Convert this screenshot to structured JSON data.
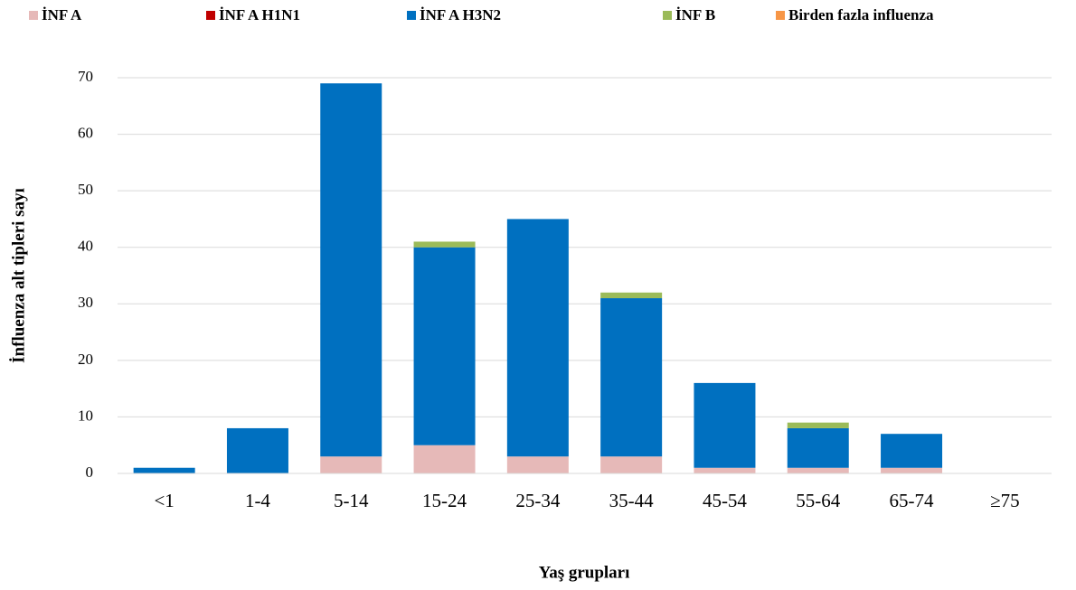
{
  "chart_data": {
    "type": "stacked-bar",
    "x_label": "Yaş grupları",
    "y_label": "İnfluenza alt tipleri sayı",
    "categories": [
      "<1",
      "1-4",
      "5-14",
      "15-24",
      "25-34",
      "35-44",
      "45-54",
      "55-64",
      "65-74",
      "≥75"
    ],
    "series": [
      {
        "name": "İNF A",
        "color": "#e6b9b8",
        "values": [
          0,
          0,
          3,
          5,
          3,
          3,
          1,
          1,
          1,
          0
        ]
      },
      {
        "name": "İNF A H1N1",
        "color": "#c00000",
        "values": [
          0,
          0,
          0,
          0,
          0,
          0,
          0,
          0,
          0,
          0
        ]
      },
      {
        "name": "İNF A H3N2",
        "color": "#0070c0",
        "values": [
          1,
          8,
          66,
          35,
          42,
          28,
          15,
          7,
          6,
          0
        ]
      },
      {
        "name": "İNF B",
        "color": "#9bbb59",
        "values": [
          0,
          0,
          0,
          1,
          0,
          1,
          0,
          1,
          0,
          0
        ]
      },
      {
        "name": "Birden fazla influenza",
        "color": "#f79646",
        "values": [
          0,
          0,
          0,
          0,
          0,
          0,
          0,
          0,
          0,
          0
        ]
      }
    ],
    "ylim": [
      0,
      70
    ],
    "yticks": [
      0,
      10,
      20,
      30,
      40,
      50,
      60,
      70
    ],
    "grid": true,
    "legend": "top"
  }
}
